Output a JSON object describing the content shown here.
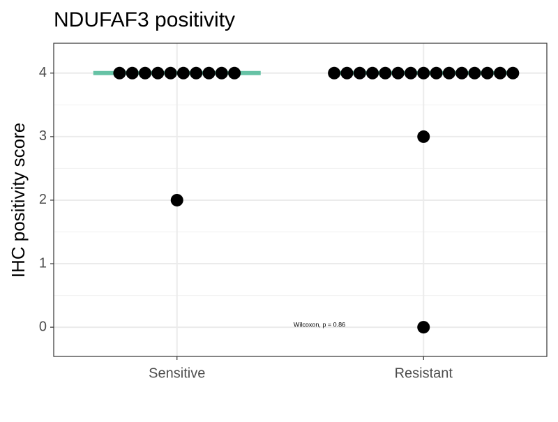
{
  "chart_data": {
    "type": "dotplot",
    "title": "NDUFAF3 positivity",
    "y_label": "IHC positivity score",
    "categories": [
      "Sensitive",
      "Resistant"
    ],
    "values": [
      [
        4,
        4,
        4,
        4,
        4,
        4,
        4,
        4,
        4,
        4,
        2
      ],
      [
        4,
        4,
        4,
        4,
        4,
        4,
        4,
        4,
        4,
        4,
        4,
        4,
        4,
        4,
        4,
        3,
        0
      ]
    ],
    "color": "#000000",
    "median": [
      4,
      4
    ],
    "median_color": "#66c2a5",
    "ylim": [
      -0.46,
      4.47
    ],
    "yticks": [
      0,
      1,
      2,
      3,
      4
    ],
    "grid": true,
    "annotation": "Wilcoxon, p = 0.86"
  }
}
